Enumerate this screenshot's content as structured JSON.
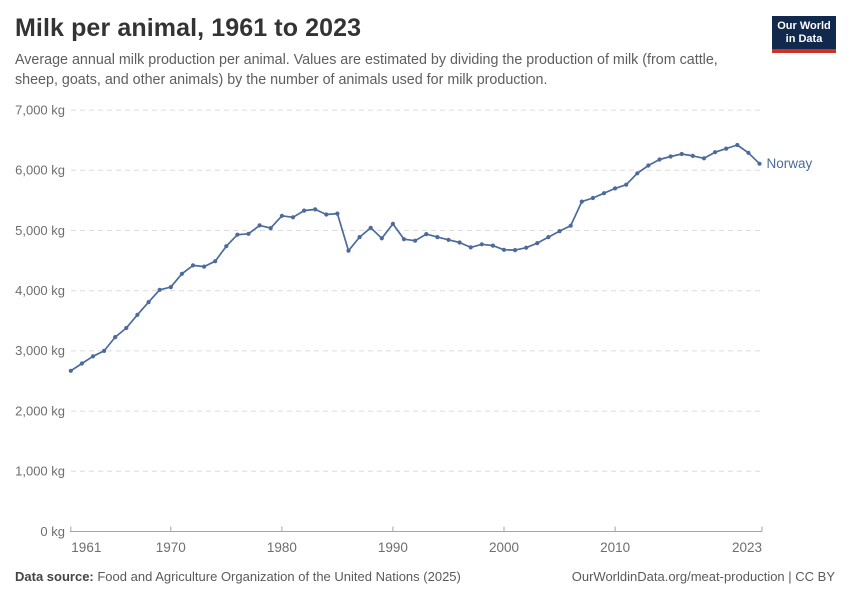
{
  "header": {
    "title": "Milk per animal, 1961 to 2023",
    "subtitle": "Average annual milk production per animal. Values are estimated by dividing the production of milk (from cattle, sheep, goats, and other animals) by the number of animals used for milk production.",
    "logo": {
      "line1": "Our World",
      "line2": "in Data"
    }
  },
  "chart_data": {
    "type": "line",
    "title": "Milk per animal, 1961 to 2023",
    "ylabel": "",
    "xlabel": "",
    "y_unit": "kg",
    "ylim": [
      0,
      7000
    ],
    "xlim": [
      1961,
      2023
    ],
    "grid": "dashed-horizontal",
    "legend_position": "end-of-line",
    "yticks": [
      {
        "value": 0,
        "label": "0 kg"
      },
      {
        "value": 1000,
        "label": "1,000 kg"
      },
      {
        "value": 2000,
        "label": "2,000 kg"
      },
      {
        "value": 3000,
        "label": "3,000 kg"
      },
      {
        "value": 4000,
        "label": "4,000 kg"
      },
      {
        "value": 5000,
        "label": "5,000 kg"
      },
      {
        "value": 6000,
        "label": "6,000 kg"
      },
      {
        "value": 7000,
        "label": "7,000 kg"
      }
    ],
    "xticks": [
      {
        "year": 1961,
        "label": "1961"
      },
      {
        "year": 1970,
        "label": "1970"
      },
      {
        "year": 1980,
        "label": "1980"
      },
      {
        "year": 1990,
        "label": "1990"
      },
      {
        "year": 2000,
        "label": "2000"
      },
      {
        "year": 2010,
        "label": "2010"
      },
      {
        "year": 2023,
        "label": "2023"
      }
    ],
    "series": [
      {
        "name": "Norway",
        "color": "#4c6a9c",
        "points": [
          [
            1961,
            2670
          ],
          [
            1962,
            2790
          ],
          [
            1963,
            2910
          ],
          [
            1964,
            3000
          ],
          [
            1965,
            3230
          ],
          [
            1966,
            3380
          ],
          [
            1967,
            3600
          ],
          [
            1968,
            3810
          ],
          [
            1969,
            4015
          ],
          [
            1970,
            4060
          ],
          [
            1971,
            4280
          ],
          [
            1972,
            4420
          ],
          [
            1973,
            4400
          ],
          [
            1974,
            4490
          ],
          [
            1975,
            4740
          ],
          [
            1976,
            4930
          ],
          [
            1977,
            4945
          ],
          [
            1978,
            5085
          ],
          [
            1979,
            5040
          ],
          [
            1980,
            5245
          ],
          [
            1981,
            5220
          ],
          [
            1982,
            5330
          ],
          [
            1983,
            5350
          ],
          [
            1984,
            5265
          ],
          [
            1985,
            5280
          ],
          [
            1986,
            4665
          ],
          [
            1987,
            4890
          ],
          [
            1988,
            5045
          ],
          [
            1989,
            4870
          ],
          [
            1990,
            5110
          ],
          [
            1991,
            4855
          ],
          [
            1992,
            4830
          ],
          [
            1993,
            4940
          ],
          [
            1994,
            4890
          ],
          [
            1995,
            4845
          ],
          [
            1996,
            4800
          ],
          [
            1997,
            4720
          ],
          [
            1998,
            4770
          ],
          [
            1999,
            4750
          ],
          [
            2000,
            4680
          ],
          [
            2001,
            4675
          ],
          [
            2002,
            4715
          ],
          [
            2003,
            4790
          ],
          [
            2004,
            4890
          ],
          [
            2005,
            4990
          ],
          [
            2006,
            5080
          ],
          [
            2007,
            5480
          ],
          [
            2008,
            5540
          ],
          [
            2009,
            5620
          ],
          [
            2010,
            5700
          ],
          [
            2011,
            5760
          ],
          [
            2012,
            5950
          ],
          [
            2013,
            6080
          ],
          [
            2014,
            6180
          ],
          [
            2015,
            6230
          ],
          [
            2016,
            6270
          ],
          [
            2017,
            6240
          ],
          [
            2018,
            6200
          ],
          [
            2019,
            6300
          ],
          [
            2020,
            6360
          ],
          [
            2021,
            6420
          ],
          [
            2022,
            6290
          ],
          [
            2023,
            6110
          ]
        ]
      }
    ]
  },
  "footer": {
    "source_label": "Data source:",
    "source_text": " Food and Agriculture Organization of the United Nations (2025)",
    "rights_text": "OurWorldinData.org/meat-production | CC BY"
  }
}
